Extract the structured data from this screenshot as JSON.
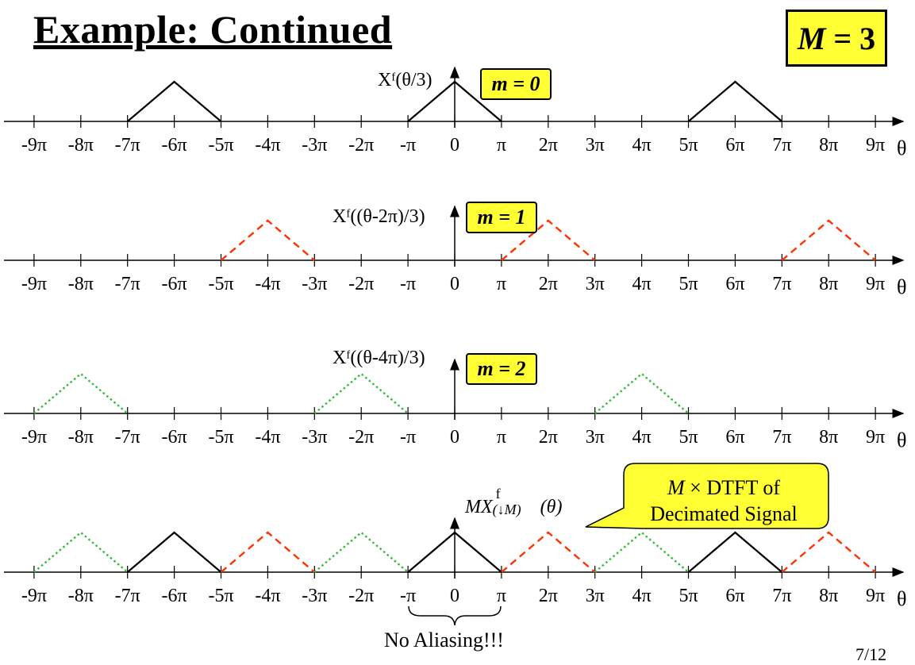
{
  "title": "Example: Continued",
  "decimation_box": {
    "symbol": "M",
    "equals": " = 3"
  },
  "axis_tick_labels": [
    "-9π",
    "-8π",
    "-7π",
    "-6π",
    "-5π",
    "-4π",
    "-3π",
    "-2π",
    "-π",
    "0",
    "π",
    "2π",
    "3π",
    "4π",
    "5π",
    "6π",
    "7π",
    "8π",
    "9π"
  ],
  "axis_variable": "θ",
  "panels": [
    {
      "function_label": "Xᶠ(θ/3)",
      "m_label": "m = 0",
      "line_style": "solid",
      "color": "#000000",
      "triangle_centers_pi": [
        -6,
        0,
        6
      ]
    },
    {
      "function_label": "Xᶠ((θ-2π)/3)",
      "m_label": "m = 1",
      "line_style": "dashed",
      "color": "#ff3300",
      "triangle_centers_pi": [
        -4,
        2,
        8
      ]
    },
    {
      "function_label": "Xᶠ((θ-4π)/3)",
      "m_label": "m = 2",
      "line_style": "dotted",
      "color": "#33bb33",
      "triangle_centers_pi": [
        -8,
        -2,
        4
      ]
    }
  ],
  "sum_panel": {
    "function_label_main": "MX",
    "function_label_sup": "f",
    "function_label_sub": "(↓M)",
    "function_label_arg": "(θ)"
  },
  "callout": {
    "line1_symbol": "M",
    "line1_rest": " × DTFT of",
    "line2": "Decimated Signal",
    "fill": "#ffff33"
  },
  "annotation": "No Aliasing!!!",
  "page_number": "7/12"
}
